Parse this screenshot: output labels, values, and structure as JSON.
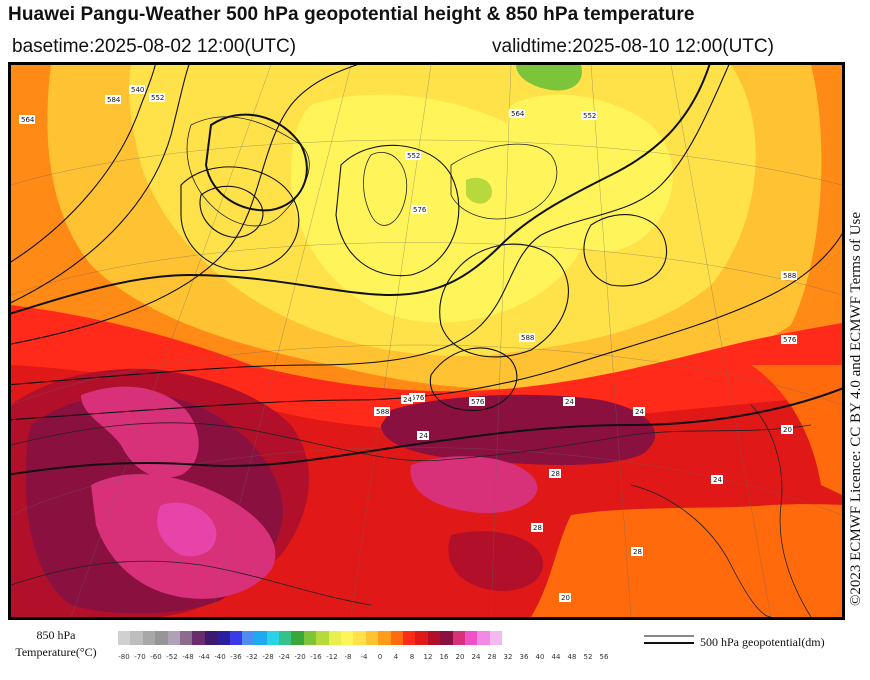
{
  "header": {
    "title": "Huawei Pangu-Weather 500 hPa geopotential height & 850 hPa temperature",
    "basetime": "basetime:2025-08-02 12:00(UTC)",
    "validtime": "validtime:2025-08-10 12:00(UTC)"
  },
  "licence": "©2023 ECMWF Licence: CC BY 4.0 and ECMWF Terms of Use",
  "legend": {
    "title_line1": "850 hPa",
    "title_line2": "Temperature(°C)",
    "contour_label": "500 hPa geopotential(dm)",
    "ticks": [
      "-80",
      "-70",
      "-60",
      "-52",
      "-48",
      "-44",
      "-40",
      "-36",
      "-32",
      "-28",
      "-24",
      "-20",
      "-16",
      "-12",
      "-8",
      "-4",
      "0",
      "4",
      "8",
      "12",
      "16",
      "20",
      "24",
      "28",
      "32",
      "36",
      "40",
      "44",
      "48",
      "52",
      "56"
    ],
    "colors": [
      "#d0d0d0",
      "#bdbdbd",
      "#a8a8a8",
      "#969696",
      "#b0a0b8",
      "#8c6b8e",
      "#6a2c6e",
      "#3d1a6e",
      "#2b1fa0",
      "#3a3ae8",
      "#4f8ef0",
      "#1fa9f0",
      "#29d3e6",
      "#34c28a",
      "#3aa838",
      "#7cc43a",
      "#b7d93c",
      "#e8f050",
      "#fff55a",
      "#ffe24a",
      "#ffc233",
      "#ff9c1a",
      "#ff6a0d",
      "#ff2a1a",
      "#e01818",
      "#b2102a",
      "#8a1040",
      "#d9307a",
      "#f050c8",
      "#f08ae6",
      "#f5b8f0"
    ]
  },
  "map_labels": {
    "height_values": [
      "588",
      "576",
      "588",
      "564",
      "552",
      "540",
      "552",
      "576",
      "588",
      "564",
      "576",
      "552",
      "576",
      "584"
    ],
    "temp_values": [
      "24",
      "24",
      "24",
      "28",
      "28",
      "20",
      "24",
      "20",
      "24",
      "28"
    ]
  },
  "colors": {
    "hot": "#8a1040",
    "very_hot": "#d9307a",
    "warm_red": "#e01818",
    "orange": "#ff6a0d",
    "amber": "#ffc233",
    "yellow": "#fff55a",
    "green": "#7cc43a"
  }
}
